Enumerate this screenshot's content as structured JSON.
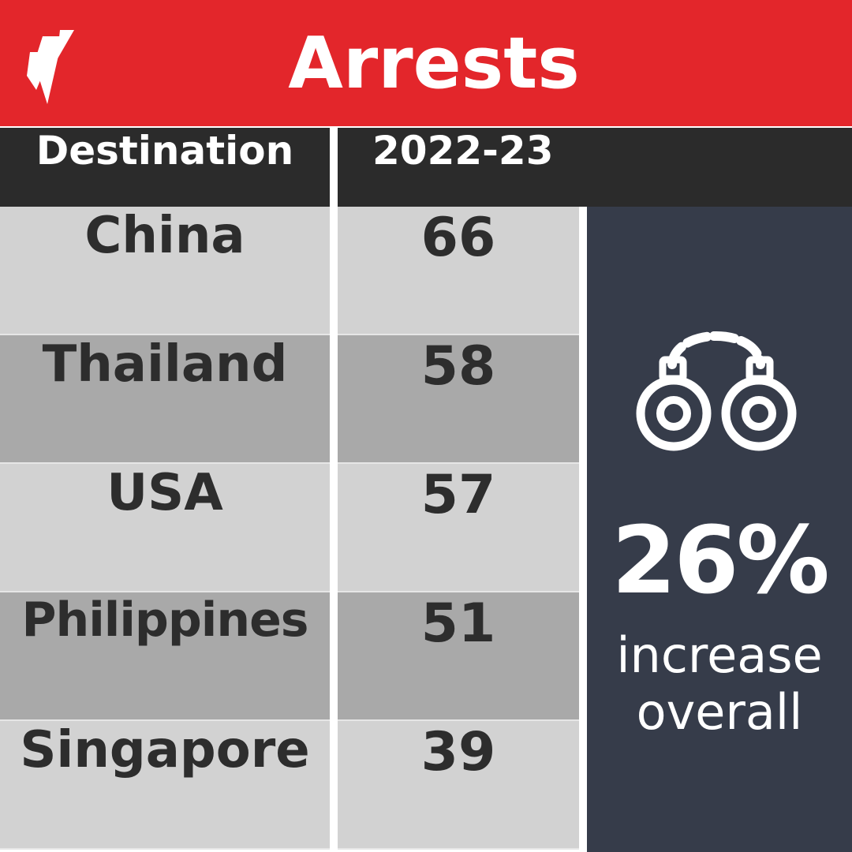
{
  "colors": {
    "brand_red": "#e3262b",
    "header_dark": "#2b2b2b",
    "row_light": "#d2d2d2",
    "row_dark": "#a9a9a9",
    "side_panel": "#363c4a",
    "text_dark": "#2d2d2d",
    "text_light": "#ffffff"
  },
  "logo": {
    "icon": "sbs-logo-icon"
  },
  "title": "Arrests",
  "chart_data": {
    "type": "table",
    "title": "Arrests",
    "columns": [
      "Destination",
      "2022-23"
    ],
    "categories": [
      "China",
      "Thailand",
      "USA",
      "Philippines",
      "Singapore"
    ],
    "values": [
      66,
      58,
      57,
      51,
      39
    ],
    "rows": [
      {
        "destination": "China",
        "value": "66"
      },
      {
        "destination": "Thailand",
        "value": "58"
      },
      {
        "destination": "USA",
        "value": "57"
      },
      {
        "destination": "Philippines",
        "value": "51"
      },
      {
        "destination": "Singapore",
        "value": "39"
      }
    ],
    "highlight": {
      "icon": "handcuffs-icon",
      "value": "26%",
      "caption_line1": "increase",
      "caption_line2": "overall"
    }
  }
}
